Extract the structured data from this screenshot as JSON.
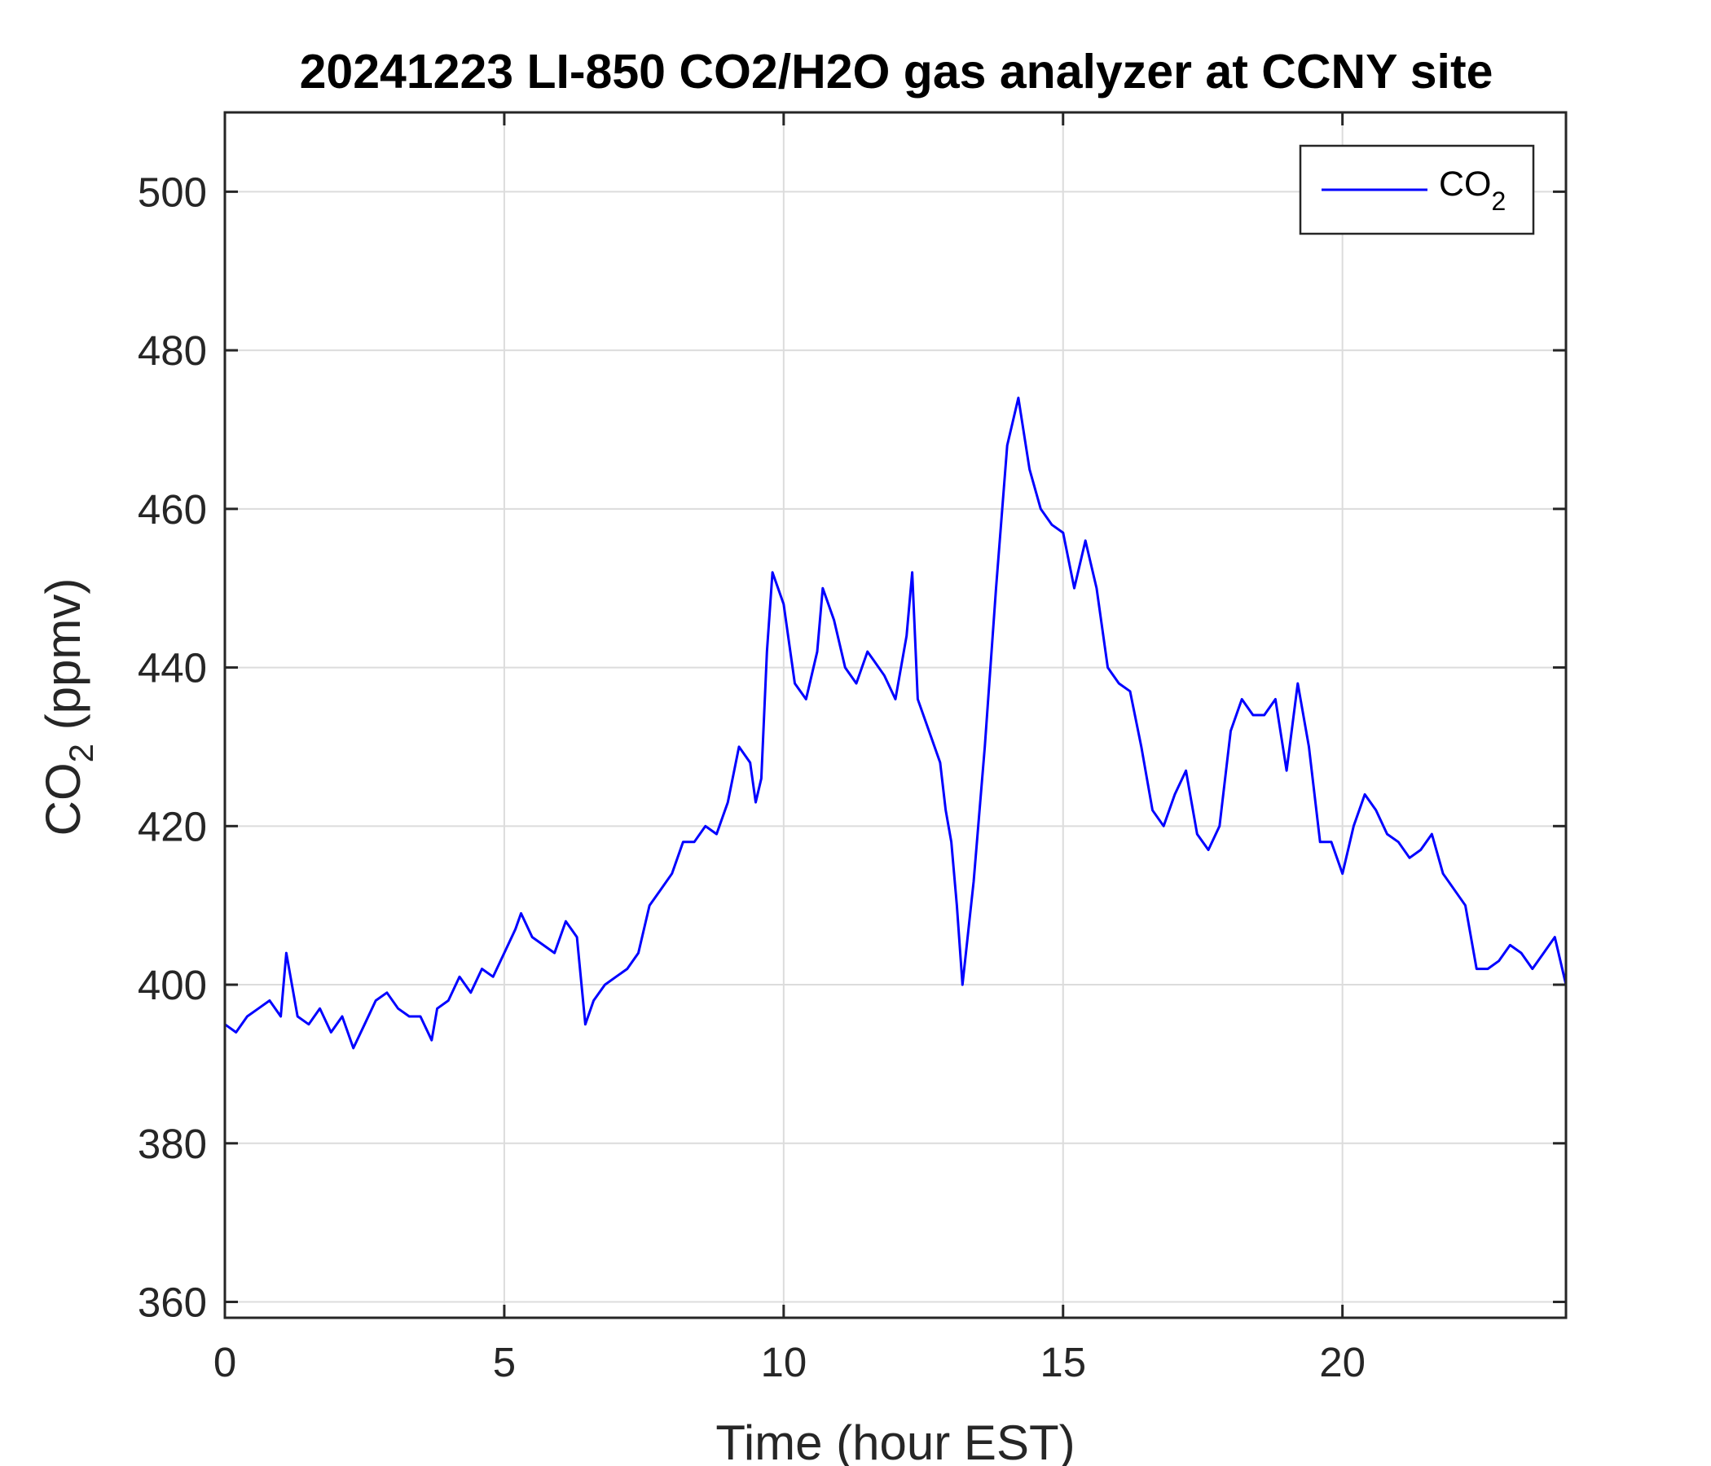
{
  "chart_data": {
    "type": "line",
    "title": "20241223 LI-850 CO2/H2O gas analyzer at CCNY site",
    "xlabel": "Time (hour EST)",
    "ylabel": {
      "main": "CO",
      "sub": "2",
      "unit": " (ppmv)"
    },
    "xlim": [
      0,
      24
    ],
    "ylim": [
      358,
      510
    ],
    "x_ticks": [
      0,
      5,
      10,
      15,
      20
    ],
    "y_ticks": [
      360,
      380,
      400,
      420,
      440,
      460,
      480,
      500
    ],
    "grid": true,
    "legend_position": "top-right",
    "series": [
      {
        "name": {
          "main": "CO",
          "sub": "2"
        },
        "color": "#0000ff",
        "x": [
          0,
          0.2,
          0.4,
          0.6,
          0.8,
          1.0,
          1.1,
          1.3,
          1.5,
          1.7,
          1.9,
          2.1,
          2.3,
          2.5,
          2.7,
          2.9,
          3.1,
          3.3,
          3.5,
          3.7,
          3.8,
          4.0,
          4.2,
          4.4,
          4.6,
          4.8,
          5.0,
          5.2,
          5.3,
          5.5,
          5.7,
          5.9,
          6.1,
          6.3,
          6.45,
          6.6,
          6.8,
          7.0,
          7.2,
          7.4,
          7.6,
          7.8,
          8.0,
          8.2,
          8.4,
          8.6,
          8.8,
          9.0,
          9.2,
          9.4,
          9.5,
          9.6,
          9.7,
          9.8,
          10.0,
          10.2,
          10.4,
          10.6,
          10.7,
          10.9,
          11.1,
          11.3,
          11.5,
          11.6,
          11.8,
          12.0,
          12.2,
          12.3,
          12.4,
          12.6,
          12.8,
          12.9,
          13.0,
          13.1,
          13.2,
          13.4,
          13.6,
          13.8,
          14.0,
          14.2,
          14.4,
          14.6,
          14.8,
          15.0,
          15.2,
          15.4,
          15.6,
          15.8,
          16.0,
          16.2,
          16.4,
          16.6,
          16.8,
          17.0,
          17.2,
          17.4,
          17.6,
          17.8,
          18.0,
          18.2,
          18.4,
          18.6,
          18.8,
          19.0,
          19.2,
          19.4,
          19.6,
          19.8,
          20.0,
          20.2,
          20.4,
          20.6,
          20.8,
          21.0,
          21.2,
          21.4,
          21.6,
          21.8,
          22.0,
          22.2,
          22.4,
          22.6,
          22.8,
          23.0,
          23.2,
          23.4,
          23.6,
          23.8,
          24.0
        ],
        "values": [
          395,
          394,
          396,
          397,
          398,
          396,
          404,
          396,
          395,
          397,
          394,
          396,
          392,
          395,
          398,
          399,
          397,
          396,
          396,
          393,
          397,
          398,
          401,
          399,
          402,
          401,
          404,
          407,
          409,
          406,
          405,
          404,
          408,
          406,
          395,
          398,
          400,
          401,
          402,
          404,
          410,
          412,
          414,
          418,
          418,
          420,
          419,
          423,
          430,
          428,
          423,
          426,
          442,
          452,
          448,
          438,
          436,
          442,
          450,
          446,
          440,
          438,
          442,
          441,
          439,
          436,
          444,
          452,
          436,
          432,
          428,
          422,
          418,
          410,
          400,
          413,
          430,
          450,
          468,
          474,
          465,
          460,
          458,
          457,
          450,
          456,
          450,
          440,
          438,
          437,
          430,
          422,
          420,
          424,
          427,
          419,
          417,
          420,
          432,
          436,
          434,
          434,
          436,
          427,
          438,
          430,
          418,
          418,
          414,
          420,
          424,
          422,
          419,
          418,
          416,
          417,
          419,
          414,
          412,
          410,
          402,
          402,
          403,
          405,
          404,
          402,
          404,
          406,
          400
        ]
      }
    ]
  }
}
